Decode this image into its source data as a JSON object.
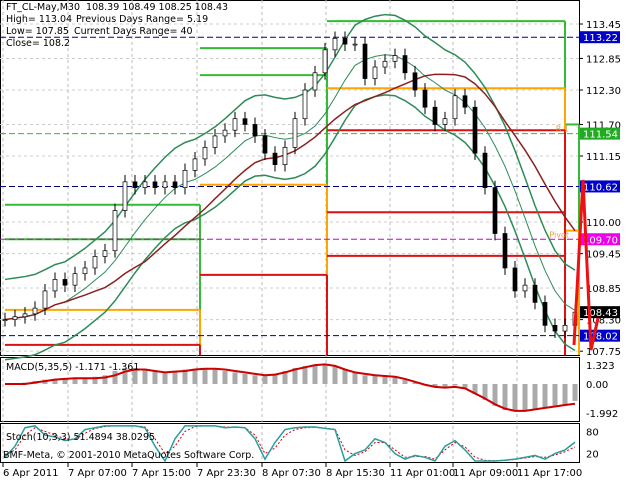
{
  "header": {
    "symbol_line": "FT_CL-May,M30  108.39 108.49 108.25 108.43",
    "high": "High= 113.04",
    "prev_range": "Previous Days Range= 5.19",
    "low": "Low= 107.85",
    "cur_range": "Current Days Range= 40",
    "close": "Close= 108.2"
  },
  "chart_data": {
    "type": "candlestick",
    "symbol": "FT_CL-May",
    "timeframe": "M30",
    "ylim": [
      107.75,
      113.6
    ],
    "price_ticks": [
      "113.45",
      "112.85",
      "112.30",
      "111.70",
      "111.15",
      "110.00",
      "109.45",
      "108.85",
      "108.30",
      "107.75"
    ],
    "time_ticks": [
      "6 Apr 2011",
      "7 Apr 07:00",
      "7 Apr 15:00",
      "7 Apr 23:30",
      "8 Apr 07:30",
      "8 Apr 15:30",
      "11 Apr 01:00",
      "11 Apr 09:00",
      "11 Apr 17:00"
    ],
    "closes": [
      108.3,
      108.35,
      108.4,
      108.5,
      108.8,
      109.0,
      108.9,
      109.1,
      109.2,
      109.4,
      109.5,
      110.2,
      110.7,
      110.6,
      110.7,
      110.6,
      110.7,
      110.6,
      110.9,
      111.1,
      111.3,
      111.5,
      111.6,
      111.8,
      111.7,
      111.5,
      111.2,
      111.0,
      111.3,
      111.8,
      112.3,
      112.6,
      113.0,
      113.2,
      113.1,
      113.1,
      112.5,
      112.7,
      112.8,
      112.9,
      112.6,
      112.3,
      112.0,
      111.7,
      111.8,
      112.2,
      112.0,
      111.2,
      110.6,
      109.8,
      109.2,
      108.8,
      108.9,
      108.6,
      108.2,
      108.1,
      108.2,
      108.43
    ],
    "levels": [
      {
        "label": "113.22",
        "price": 113.22,
        "color": "#0000cc",
        "line": "#000080"
      },
      {
        "label": "111.54",
        "price": 111.54,
        "color": "#22aa22",
        "line": "#33bb33",
        "tag": "R 1"
      },
      {
        "label": "110.62",
        "price": 110.62,
        "color": "#0000cc",
        "line": "#000080"
      },
      {
        "label": "109.70",
        "price": 109.7,
        "color": "#ee00ee",
        "line": "#cc00cc",
        "tag": "Pivot"
      },
      {
        "label": "108.43",
        "price": 108.43,
        "color": "#000000",
        "line": null
      },
      {
        "label": "108.02",
        "price": 108.02,
        "color": "#0000cc",
        "line": "#000080"
      }
    ],
    "macd": {
      "label": "MACD(5,35,5) -1.171 -1.361",
      "ticks": [
        "1.323",
        "0.00",
        "-1.992"
      ],
      "range": [
        -1.992,
        1.323
      ],
      "hist": [
        0,
        0.05,
        0.1,
        0.2,
        0.3,
        0.35,
        0.4,
        0.4,
        0.45,
        0.5,
        0.6,
        0.9,
        1.1,
        1.1,
        1.0,
        0.9,
        0.85,
        0.9,
        1.0,
        1.05,
        1.1,
        1.0,
        0.9,
        0.8,
        0.7,
        0.6,
        0.6,
        0.7,
        0.9,
        1.1,
        1.25,
        1.3,
        1.3,
        1.2,
        1.0,
        0.8,
        0.6,
        0.55,
        0.5,
        0.45,
        0.3,
        0.1,
        -0.1,
        -0.2,
        -0.2,
        -0.1,
        -0.3,
        -0.7,
        -1.1,
        -1.5,
        -1.8,
        -1.9,
        -1.8,
        -1.7,
        -1.6,
        -1.5,
        -1.4,
        -1.17
      ],
      "signal": [
        0,
        0,
        0,
        0.1,
        0.2,
        0.3,
        0.35,
        0.4,
        0.4,
        0.4,
        0.45,
        0.6,
        0.85,
        1.0,
        1.0,
        0.9,
        0.8,
        0.85,
        0.9,
        1.0,
        1.05,
        1.05,
        1.0,
        0.9,
        0.8,
        0.7,
        0.6,
        0.65,
        0.8,
        1.0,
        1.15,
        1.3,
        1.35,
        1.25,
        1.0,
        0.8,
        0.7,
        0.6,
        0.55,
        0.5,
        0.35,
        0.15,
        -0.05,
        -0.2,
        -0.25,
        -0.2,
        -0.3,
        -0.65,
        -1.0,
        -1.4,
        -1.7,
        -1.85,
        -1.85,
        -1.75,
        -1.65,
        -1.55,
        -1.45,
        -1.36
      ]
    },
    "stoch": {
      "label": "Stoch(10,3,3) 51.4894 38.0295",
      "ticks": [
        "80",
        "20"
      ],
      "main": [
        10,
        40,
        90,
        95,
        70,
        65,
        55,
        60,
        85,
        90,
        95,
        95,
        95,
        95,
        90,
        40,
        0,
        60,
        95,
        95,
        95,
        95,
        90,
        92,
        90,
        60,
        5,
        50,
        85,
        90,
        92,
        92,
        88,
        85,
        0,
        20,
        30,
        60,
        50,
        20,
        5,
        15,
        10,
        0,
        40,
        55,
        30,
        0,
        0,
        0,
        2,
        5,
        10,
        15,
        5,
        20,
        30,
        51
      ],
      "signal": [
        15,
        30,
        70,
        90,
        80,
        70,
        60,
        58,
        75,
        88,
        93,
        95,
        95,
        95,
        92,
        60,
        20,
        40,
        80,
        93,
        95,
        95,
        92,
        91,
        90,
        70,
        20,
        35,
        70,
        85,
        90,
        91,
        89,
        86,
        30,
        15,
        25,
        50,
        50,
        30,
        10,
        12,
        12,
        5,
        30,
        50,
        38,
        10,
        2,
        1,
        2,
        4,
        8,
        12,
        10,
        16,
        25,
        38
      ]
    }
  },
  "footer": {
    "copyright": "BMF-Meta, © 2001-2010 MetaQuotes Software Corp."
  }
}
